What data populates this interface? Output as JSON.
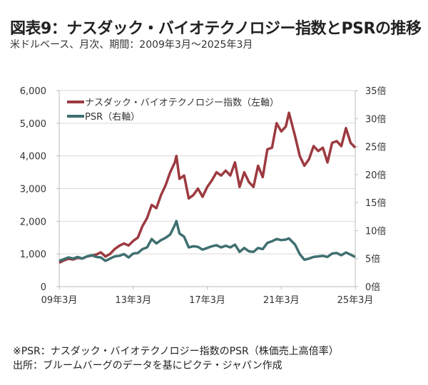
{
  "title": "図表9：ナスダック・バイオテクノロジー指数とPSRの推移",
  "subtitle": "米ドルベース、月次、期間：2009年3月～2025年3月",
  "notes": [
    "※PSR：ナスダック・バイオテクノロジー指数のPSR（株価売上高倍率）",
    "出所：ブルームバーグのデータを基にピクテ・ジャパン作成"
  ],
  "chart_data": {
    "type": "line",
    "grid": true,
    "legend_placement": "top-left",
    "x_ticks": [
      "09年3月",
      "13年3月",
      "17年3月",
      "21年3月",
      "25年3月"
    ],
    "x_tick_dates": [
      "2009-03",
      "2013-03",
      "2017-03",
      "2021-03",
      "2025-03"
    ],
    "y_left": {
      "range": [
        0,
        6000
      ],
      "ticks": [
        "0",
        "1,000",
        "2,000",
        "3,000",
        "4,000",
        "5,000",
        "6,000"
      ],
      "tick_values": [
        0,
        1000,
        2000,
        3000,
        4000,
        5000,
        6000
      ]
    },
    "y_right": {
      "range": [
        0,
        35
      ],
      "ticks": [
        "0倍",
        "5倍",
        "10倍",
        "15倍",
        "20倍",
        "25倍",
        "30倍",
        "35倍"
      ],
      "tick_values": [
        0,
        5,
        10,
        15,
        20,
        25,
        30,
        35
      ]
    },
    "x": [
      "2009-03",
      "2009-06",
      "2009-09",
      "2009-12",
      "2010-03",
      "2010-06",
      "2010-09",
      "2010-12",
      "2011-03",
      "2011-06",
      "2011-09",
      "2011-12",
      "2012-03",
      "2012-06",
      "2012-09",
      "2012-12",
      "2013-03",
      "2013-06",
      "2013-09",
      "2013-12",
      "2014-03",
      "2014-06",
      "2014-09",
      "2014-12",
      "2015-03",
      "2015-06",
      "2015-07",
      "2015-09",
      "2015-12",
      "2016-03",
      "2016-06",
      "2016-09",
      "2016-12",
      "2017-03",
      "2017-06",
      "2017-09",
      "2017-12",
      "2018-03",
      "2018-06",
      "2018-09",
      "2018-12",
      "2019-03",
      "2019-06",
      "2019-09",
      "2019-12",
      "2020-03",
      "2020-06",
      "2020-09",
      "2020-12",
      "2021-03",
      "2021-06",
      "2021-08",
      "2021-12",
      "2022-03",
      "2022-06",
      "2022-09",
      "2022-12",
      "2023-03",
      "2023-06",
      "2023-09",
      "2023-12",
      "2024-03",
      "2024-06",
      "2024-09",
      "2024-12",
      "2025-03"
    ],
    "series": [
      {
        "name": "ナスダック・バイオテクノロジー指数（左軸）",
        "axis": "left",
        "color": "#9c3a40",
        "values": [
          730,
          800,
          850,
          830,
          880,
          860,
          920,
          950,
          980,
          1050,
          920,
          1000,
          1150,
          1250,
          1320,
          1260,
          1400,
          1500,
          1850,
          2100,
          2500,
          2400,
          2800,
          3100,
          3500,
          3800,
          4000,
          3300,
          3400,
          2700,
          2800,
          3000,
          2750,
          3050,
          3250,
          3500,
          3400,
          3550,
          3400,
          3800,
          3050,
          3500,
          3200,
          3050,
          3700,
          3350,
          4200,
          4250,
          5000,
          4750,
          4900,
          5320,
          4600,
          4000,
          3700,
          3900,
          4300,
          4150,
          4250,
          3800,
          4400,
          4450,
          4300,
          4850,
          4400,
          4250
        ]
      },
      {
        "name": "PSR（右軸）",
        "axis": "right",
        "color": "#3f6f70",
        "values": [
          4.6,
          4.9,
          5.2,
          5.0,
          5.3,
          5.0,
          5.4,
          5.6,
          5.3,
          5.2,
          4.6,
          5.0,
          5.4,
          5.5,
          5.8,
          5.2,
          5.9,
          6.0,
          6.7,
          7.0,
          8.5,
          7.7,
          8.3,
          8.7,
          9.3,
          11.0,
          11.7,
          9.5,
          8.9,
          7.0,
          7.2,
          7.1,
          6.6,
          6.9,
          7.2,
          7.4,
          7.0,
          7.3,
          7.0,
          7.5,
          6.2,
          6.9,
          6.3,
          6.2,
          6.9,
          6.7,
          7.8,
          8.1,
          8.5,
          8.3,
          8.4,
          8.6,
          7.5,
          5.8,
          4.8,
          5.0,
          5.3,
          5.4,
          5.5,
          5.3,
          5.9,
          6.0,
          5.6,
          6.1,
          5.7,
          5.3
        ]
      }
    ]
  }
}
